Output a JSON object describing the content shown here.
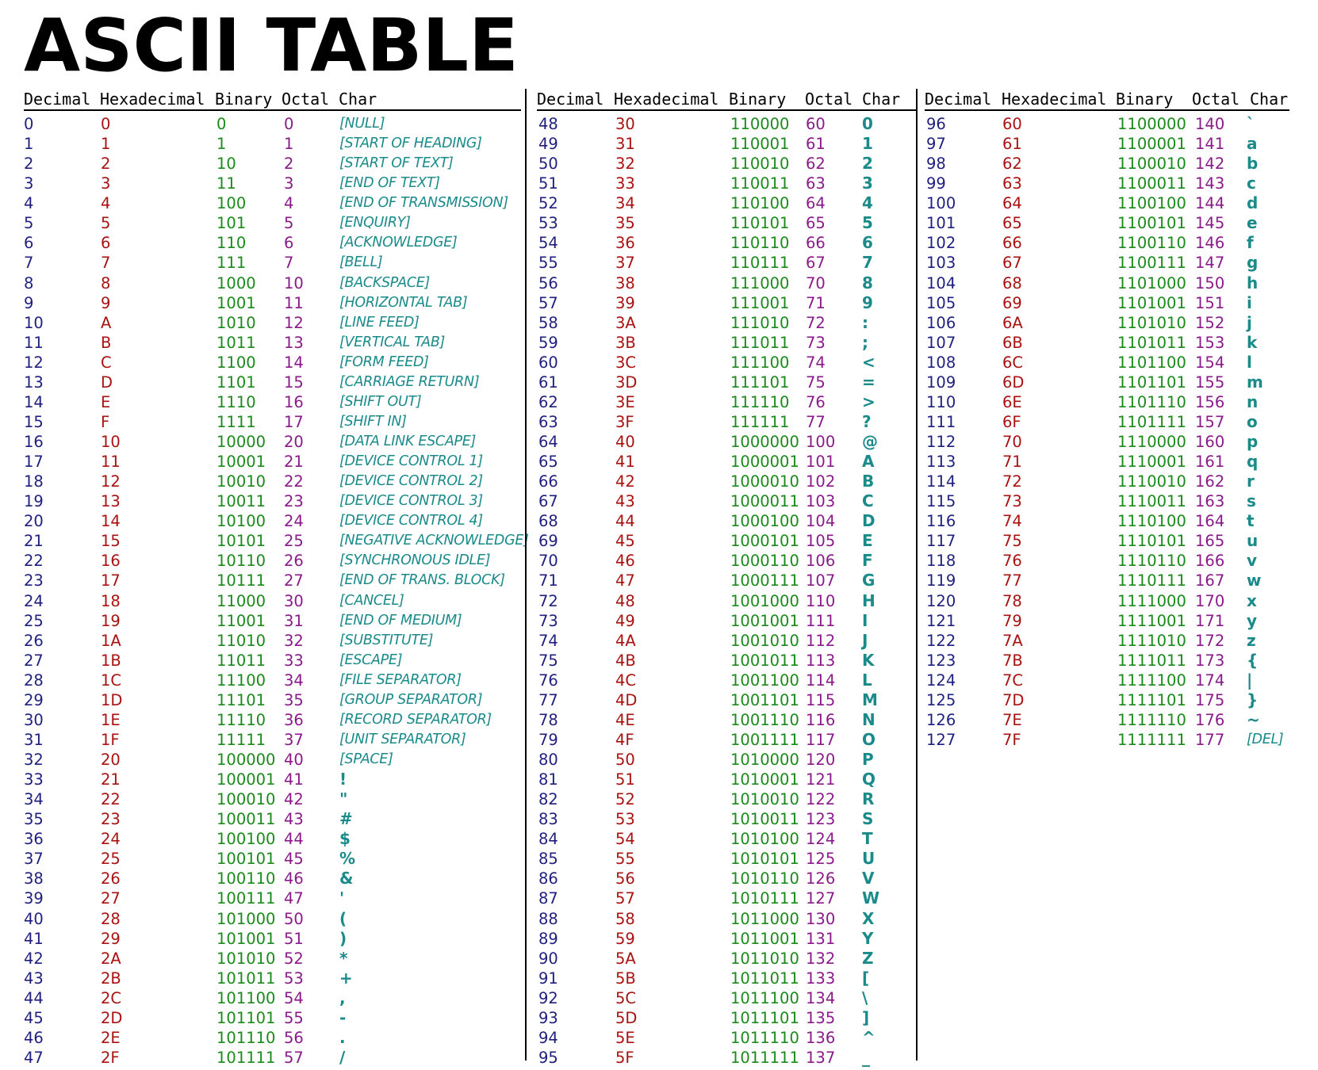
{
  "title": "ASCII TABLE",
  "headers": [
    "Decimal",
    "Hexadecimal",
    "Binary",
    "Octal",
    "Char"
  ],
  "colors": {
    "decimal": "#1f1f80",
    "hexadecimal": "#aa1111",
    "binary": "#1a8a1a",
    "octal": "#8a1a8a",
    "char": "#1a8a8a"
  },
  "blocks": [
    {
      "rows": [
        [
          "0",
          "0",
          "0",
          "0",
          "[NULL]"
        ],
        [
          "1",
          "1",
          "1",
          "1",
          "[START OF HEADING]"
        ],
        [
          "2",
          "2",
          "10",
          "2",
          "[START OF TEXT]"
        ],
        [
          "3",
          "3",
          "11",
          "3",
          "[END OF TEXT]"
        ],
        [
          "4",
          "4",
          "100",
          "4",
          "[END OF TRANSMISSION]"
        ],
        [
          "5",
          "5",
          "101",
          "5",
          "[ENQUIRY]"
        ],
        [
          "6",
          "6",
          "110",
          "6",
          "[ACKNOWLEDGE]"
        ],
        [
          "7",
          "7",
          "111",
          "7",
          "[BELL]"
        ],
        [
          "8",
          "8",
          "1000",
          "10",
          "[BACKSPACE]"
        ],
        [
          "9",
          "9",
          "1001",
          "11",
          "[HORIZONTAL TAB]"
        ],
        [
          "10",
          "A",
          "1010",
          "12",
          "[LINE FEED]"
        ],
        [
          "11",
          "B",
          "1011",
          "13",
          "[VERTICAL TAB]"
        ],
        [
          "12",
          "C",
          "1100",
          "14",
          "[FORM FEED]"
        ],
        [
          "13",
          "D",
          "1101",
          "15",
          "[CARRIAGE RETURN]"
        ],
        [
          "14",
          "E",
          "1110",
          "16",
          "[SHIFT OUT]"
        ],
        [
          "15",
          "F",
          "1111",
          "17",
          "[SHIFT IN]"
        ],
        [
          "16",
          "10",
          "10000",
          "20",
          "[DATA LINK ESCAPE]"
        ],
        [
          "17",
          "11",
          "10001",
          "21",
          "[DEVICE CONTROL 1]"
        ],
        [
          "18",
          "12",
          "10010",
          "22",
          "[DEVICE CONTROL 2]"
        ],
        [
          "19",
          "13",
          "10011",
          "23",
          "[DEVICE CONTROL 3]"
        ],
        [
          "20",
          "14",
          "10100",
          "24",
          "[DEVICE CONTROL 4]"
        ],
        [
          "21",
          "15",
          "10101",
          "25",
          "[NEGATIVE ACKNOWLEDGE]"
        ],
        [
          "22",
          "16",
          "10110",
          "26",
          "[SYNCHRONOUS IDLE]"
        ],
        [
          "23",
          "17",
          "10111",
          "27",
          "[END OF TRANS. BLOCK]"
        ],
        [
          "24",
          "18",
          "11000",
          "30",
          "[CANCEL]"
        ],
        [
          "25",
          "19",
          "11001",
          "31",
          "[END OF MEDIUM]"
        ],
        [
          "26",
          "1A",
          "11010",
          "32",
          "[SUBSTITUTE]"
        ],
        [
          "27",
          "1B",
          "11011",
          "33",
          "[ESCAPE]"
        ],
        [
          "28",
          "1C",
          "11100",
          "34",
          "[FILE SEPARATOR]"
        ],
        [
          "29",
          "1D",
          "11101",
          "35",
          "[GROUP SEPARATOR]"
        ],
        [
          "30",
          "1E",
          "11110",
          "36",
          "[RECORD SEPARATOR]"
        ],
        [
          "31",
          "1F",
          "11111",
          "37",
          "[UNIT SEPARATOR]"
        ],
        [
          "32",
          "20",
          "100000",
          "40",
          "[SPACE]"
        ],
        [
          "33",
          "21",
          "100001",
          "41",
          "!"
        ],
        [
          "34",
          "22",
          "100010",
          "42",
          "\""
        ],
        [
          "35",
          "23",
          "100011",
          "43",
          "#"
        ],
        [
          "36",
          "24",
          "100100",
          "44",
          "$"
        ],
        [
          "37",
          "25",
          "100101",
          "45",
          "%"
        ],
        [
          "38",
          "26",
          "100110",
          "46",
          "&"
        ],
        [
          "39",
          "27",
          "100111",
          "47",
          "'"
        ],
        [
          "40",
          "28",
          "101000",
          "50",
          "("
        ],
        [
          "41",
          "29",
          "101001",
          "51",
          ")"
        ],
        [
          "42",
          "2A",
          "101010",
          "52",
          "*"
        ],
        [
          "43",
          "2B",
          "101011",
          "53",
          "+"
        ],
        [
          "44",
          "2C",
          "101100",
          "54",
          ","
        ],
        [
          "45",
          "2D",
          "101101",
          "55",
          "-"
        ],
        [
          "46",
          "2E",
          "101110",
          "56",
          "."
        ],
        [
          "47",
          "2F",
          "101111",
          "57",
          "/"
        ]
      ]
    },
    {
      "rows": [
        [
          "48",
          "30",
          "110000",
          "60",
          "0"
        ],
        [
          "49",
          "31",
          "110001",
          "61",
          "1"
        ],
        [
          "50",
          "32",
          "110010",
          "62",
          "2"
        ],
        [
          "51",
          "33",
          "110011",
          "63",
          "3"
        ],
        [
          "52",
          "34",
          "110100",
          "64",
          "4"
        ],
        [
          "53",
          "35",
          "110101",
          "65",
          "5"
        ],
        [
          "54",
          "36",
          "110110",
          "66",
          "6"
        ],
        [
          "55",
          "37",
          "110111",
          "67",
          "7"
        ],
        [
          "56",
          "38",
          "111000",
          "70",
          "8"
        ],
        [
          "57",
          "39",
          "111001",
          "71",
          "9"
        ],
        [
          "58",
          "3A",
          "111010",
          "72",
          ":"
        ],
        [
          "59",
          "3B",
          "111011",
          "73",
          ";"
        ],
        [
          "60",
          "3C",
          "111100",
          "74",
          "<"
        ],
        [
          "61",
          "3D",
          "111101",
          "75",
          "="
        ],
        [
          "62",
          "3E",
          "111110",
          "76",
          ">"
        ],
        [
          "63",
          "3F",
          "111111",
          "77",
          "?"
        ],
        [
          "64",
          "40",
          "1000000",
          "100",
          "@"
        ],
        [
          "65",
          "41",
          "1000001",
          "101",
          "A"
        ],
        [
          "66",
          "42",
          "1000010",
          "102",
          "B"
        ],
        [
          "67",
          "43",
          "1000011",
          "103",
          "C"
        ],
        [
          "68",
          "44",
          "1000100",
          "104",
          "D"
        ],
        [
          "69",
          "45",
          "1000101",
          "105",
          "E"
        ],
        [
          "70",
          "46",
          "1000110",
          "106",
          "F"
        ],
        [
          "71",
          "47",
          "1000111",
          "107",
          "G"
        ],
        [
          "72",
          "48",
          "1001000",
          "110",
          "H"
        ],
        [
          "73",
          "49",
          "1001001",
          "111",
          "I"
        ],
        [
          "74",
          "4A",
          "1001010",
          "112",
          "J"
        ],
        [
          "75",
          "4B",
          "1001011",
          "113",
          "K"
        ],
        [
          "76",
          "4C",
          "1001100",
          "114",
          "L"
        ],
        [
          "77",
          "4D",
          "1001101",
          "115",
          "M"
        ],
        [
          "78",
          "4E",
          "1001110",
          "116",
          "N"
        ],
        [
          "79",
          "4F",
          "1001111",
          "117",
          "O"
        ],
        [
          "80",
          "50",
          "1010000",
          "120",
          "P"
        ],
        [
          "81",
          "51",
          "1010001",
          "121",
          "Q"
        ],
        [
          "82",
          "52",
          "1010010",
          "122",
          "R"
        ],
        [
          "83",
          "53",
          "1010011",
          "123",
          "S"
        ],
        [
          "84",
          "54",
          "1010100",
          "124",
          "T"
        ],
        [
          "85",
          "55",
          "1010101",
          "125",
          "U"
        ],
        [
          "86",
          "56",
          "1010110",
          "126",
          "V"
        ],
        [
          "87",
          "57",
          "1010111",
          "127",
          "W"
        ],
        [
          "88",
          "58",
          "1011000",
          "130",
          "X"
        ],
        [
          "89",
          "59",
          "1011001",
          "131",
          "Y"
        ],
        [
          "90",
          "5A",
          "1011010",
          "132",
          "Z"
        ],
        [
          "91",
          "5B",
          "1011011",
          "133",
          "["
        ],
        [
          "92",
          "5C",
          "1011100",
          "134",
          "\\"
        ],
        [
          "93",
          "5D",
          "1011101",
          "135",
          "]"
        ],
        [
          "94",
          "5E",
          "1011110",
          "136",
          "^"
        ],
        [
          "95",
          "5F",
          "1011111",
          "137",
          "_"
        ]
      ]
    },
    {
      "rows": [
        [
          "96",
          "60",
          "1100000",
          "140",
          "`"
        ],
        [
          "97",
          "61",
          "1100001",
          "141",
          "a"
        ],
        [
          "98",
          "62",
          "1100010",
          "142",
          "b"
        ],
        [
          "99",
          "63",
          "1100011",
          "143",
          "c"
        ],
        [
          "100",
          "64",
          "1100100",
          "144",
          "d"
        ],
        [
          "101",
          "65",
          "1100101",
          "145",
          "e"
        ],
        [
          "102",
          "66",
          "1100110",
          "146",
          "f"
        ],
        [
          "103",
          "67",
          "1100111",
          "147",
          "g"
        ],
        [
          "104",
          "68",
          "1101000",
          "150",
          "h"
        ],
        [
          "105",
          "69",
          "1101001",
          "151",
          "i"
        ],
        [
          "106",
          "6A",
          "1101010",
          "152",
          "j"
        ],
        [
          "107",
          "6B",
          "1101011",
          "153",
          "k"
        ],
        [
          "108",
          "6C",
          "1101100",
          "154",
          "l"
        ],
        [
          "109",
          "6D",
          "1101101",
          "155",
          "m"
        ],
        [
          "110",
          "6E",
          "1101110",
          "156",
          "n"
        ],
        [
          "111",
          "6F",
          "1101111",
          "157",
          "o"
        ],
        [
          "112",
          "70",
          "1110000",
          "160",
          "p"
        ],
        [
          "113",
          "71",
          "1110001",
          "161",
          "q"
        ],
        [
          "114",
          "72",
          "1110010",
          "162",
          "r"
        ],
        [
          "115",
          "73",
          "1110011",
          "163",
          "s"
        ],
        [
          "116",
          "74",
          "1110100",
          "164",
          "t"
        ],
        [
          "117",
          "75",
          "1110101",
          "165",
          "u"
        ],
        [
          "118",
          "76",
          "1110110",
          "166",
          "v"
        ],
        [
          "119",
          "77",
          "1110111",
          "167",
          "w"
        ],
        [
          "120",
          "78",
          "1111000",
          "170",
          "x"
        ],
        [
          "121",
          "79",
          "1111001",
          "171",
          "y"
        ],
        [
          "122",
          "7A",
          "1111010",
          "172",
          "z"
        ],
        [
          "123",
          "7B",
          "1111011",
          "173",
          "{"
        ],
        [
          "124",
          "7C",
          "1111100",
          "174",
          "|"
        ],
        [
          "125",
          "7D",
          "1111101",
          "175",
          "}"
        ],
        [
          "126",
          "7E",
          "1111110",
          "176",
          "~"
        ],
        [
          "127",
          "7F",
          "1111111",
          "177",
          "[DEL]"
        ]
      ]
    }
  ]
}
